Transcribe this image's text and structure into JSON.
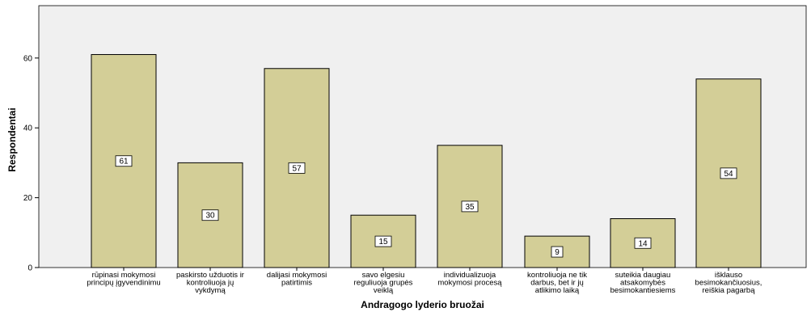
{
  "chart_data": {
    "type": "bar",
    "xlabel": "Andragogo lyderio bruožai",
    "ylabel": "Respondentai",
    "ylim": [
      0,
      75
    ],
    "yticks": [
      0,
      20,
      40,
      60
    ],
    "grid": false,
    "categories": [
      [
        "rūpinasi mokymosi",
        "principų įgyvendinimu"
      ],
      [
        "paskirsto užduotis ir",
        "kontroliuoja jų",
        "vykdymą"
      ],
      [
        "dalijasi mokymosi",
        "patirtimis"
      ],
      [
        "savo elgesiu",
        "reguliuoja grupės",
        "veiklą"
      ],
      [
        "individualizuoja",
        "mokymosi procesą"
      ],
      [
        "kontroliuoja  ne tik",
        "darbus, bet ir jų",
        "atlikimo laiką"
      ],
      [
        "suteikia daugiau",
        "atsakomybės",
        "besimokantiesiems"
      ],
      [
        "išklauso",
        "besimokančiuosius,",
        "reiškia pagarbą"
      ]
    ],
    "values": [
      61,
      30,
      57,
      15,
      35,
      9,
      14,
      54
    ],
    "colors": {
      "plot_bg": "#f0f0f0",
      "bar_fill": "#d3ce97",
      "bar_stroke": "#000000"
    }
  }
}
